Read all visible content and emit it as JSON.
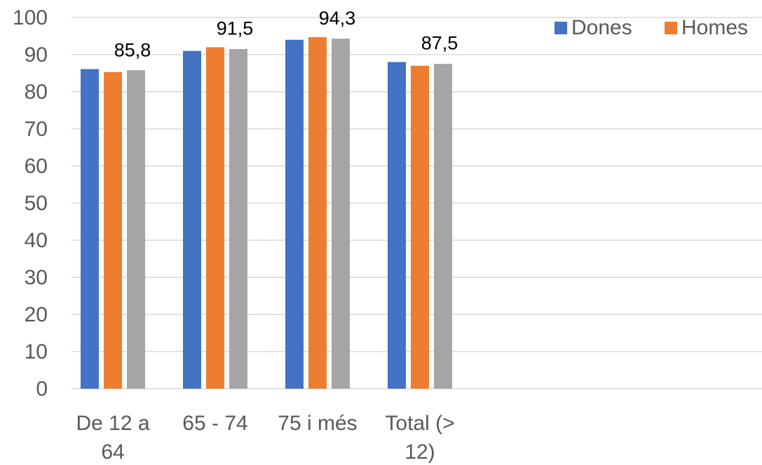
{
  "chart_data": {
    "type": "bar",
    "categories": [
      [
        "De 12 a",
        "64"
      ],
      [
        "65 - 74"
      ],
      [
        "75 i més"
      ],
      [
        "Total (>",
        "12)"
      ]
    ],
    "series": [
      {
        "name": "Dones",
        "color": "#4472c4",
        "values": [
          86.1,
          91.0,
          94.0,
          88.0
        ]
      },
      {
        "name": "Homes",
        "color": "#ed7d31",
        "values": [
          85.3,
          92.0,
          94.7,
          87.0
        ]
      },
      {
        "name": "",
        "color": "#a5a5a5",
        "values": [
          85.8,
          91.5,
          94.3,
          87.5
        ]
      }
    ],
    "data_labels": [
      "85,8",
      "91,5",
      "94,3",
      "87,5"
    ],
    "yticks": [
      "0",
      "10",
      "20",
      "30",
      "40",
      "50",
      "60",
      "70",
      "80",
      "90",
      "100"
    ],
    "ylim": [
      0,
      100
    ],
    "grid": true,
    "legend": "top-right"
  }
}
